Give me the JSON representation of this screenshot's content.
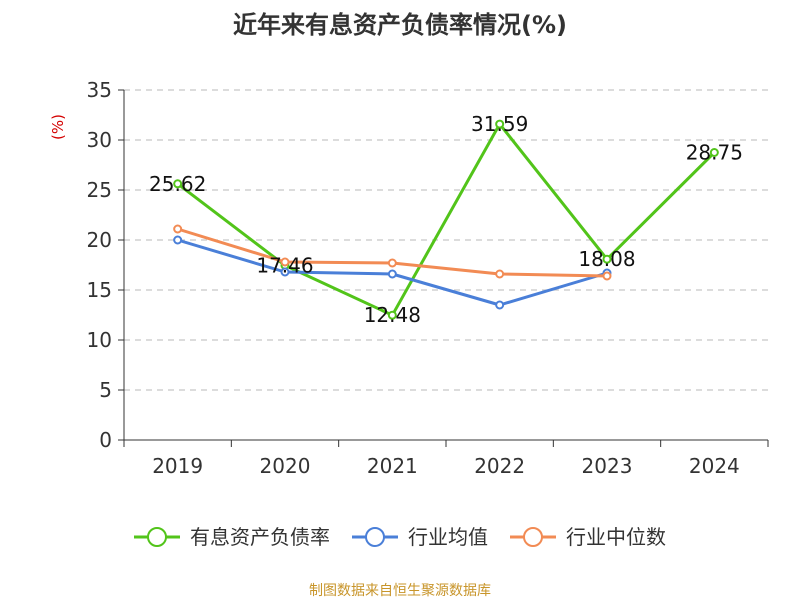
{
  "chart_data": {
    "type": "line",
    "title": "近年来有息资产负债率情况(%)",
    "unit_label": "(%)",
    "categories": [
      "2019",
      "2020",
      "2021",
      "2022",
      "2023",
      "2024"
    ],
    "ylim": [
      0,
      35
    ],
    "yticks": [
      0,
      5,
      10,
      15,
      20,
      25,
      30,
      35
    ],
    "grid": true,
    "legend_position": "bottom",
    "series": [
      {
        "name": "有息资产负债率",
        "color": "#52c41a",
        "values": [
          25.62,
          17.46,
          12.48,
          31.59,
          18.08,
          28.75
        ],
        "show_labels": true,
        "labels": [
          "25.62",
          "17.46",
          "12.48",
          "31.59",
          "18.08",
          "28.75"
        ]
      },
      {
        "name": "行业均值",
        "color": "#4a7fd8",
        "values": [
          20.0,
          16.8,
          16.6,
          13.5,
          16.7,
          null
        ],
        "show_labels": false
      },
      {
        "name": "行业中位数",
        "color": "#f28b54",
        "values": [
          21.1,
          17.8,
          17.7,
          16.6,
          16.4,
          null
        ],
        "show_labels": false
      }
    ]
  },
  "source": "制图数据来自恒生聚源数据库"
}
